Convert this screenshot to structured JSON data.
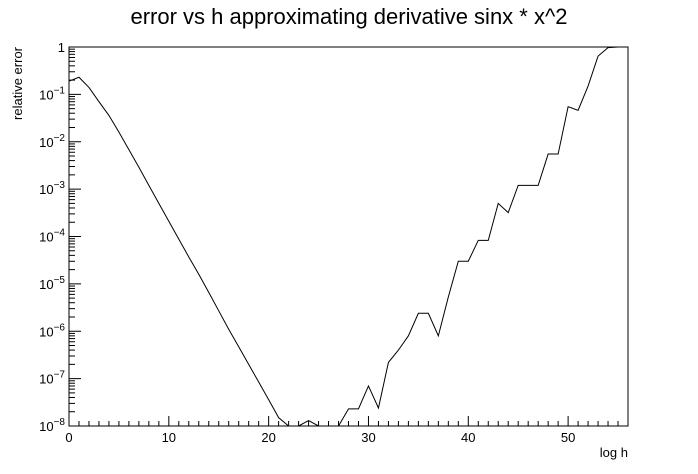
{
  "chart_data": {
    "type": "line",
    "title": "error vs h approximating derivative sinx * x^2",
    "xlabel": "log h",
    "ylabel": "relative error",
    "xlim": [
      0,
      56
    ],
    "ylim": [
      1e-08,
      1
    ],
    "yscale": "log",
    "grid": false,
    "x_ticks": [
      {
        "value": 0,
        "label": "0"
      },
      {
        "value": 10,
        "label": "10"
      },
      {
        "value": 20,
        "label": "20"
      },
      {
        "value": 30,
        "label": "30"
      },
      {
        "value": 40,
        "label": "40"
      },
      {
        "value": 50,
        "label": "50"
      }
    ],
    "y_ticks": [
      {
        "value": 1,
        "base": "1",
        "exp": ""
      },
      {
        "value": 0.1,
        "base": "10",
        "exp": "−1"
      },
      {
        "value": 0.01,
        "base": "10",
        "exp": "−2"
      },
      {
        "value": 0.001,
        "base": "10",
        "exp": "−3"
      },
      {
        "value": 0.0001,
        "base": "10",
        "exp": "−4"
      },
      {
        "value": 1e-05,
        "base": "10",
        "exp": "−5"
      },
      {
        "value": 1e-06,
        "base": "10",
        "exp": "−6"
      },
      {
        "value": 1e-07,
        "base": "10",
        "exp": "−7"
      },
      {
        "value": 1e-08,
        "base": "10",
        "exp": "−8"
      }
    ],
    "series": [
      {
        "x": [
          0,
          1,
          2,
          3,
          4,
          5,
          6,
          7,
          8,
          9,
          10,
          11,
          12,
          13,
          14,
          15,
          16,
          17,
          18,
          19,
          20,
          21,
          22,
          23,
          24,
          25,
          26,
          27,
          28,
          29,
          30,
          31,
          32,
          33,
          34,
          35,
          36,
          37,
          38,
          39,
          40,
          41,
          42,
          43,
          44,
          45,
          46,
          47,
          48,
          49,
          50,
          51,
          52,
          53,
          54,
          55,
          56
        ],
        "y": [
          0.19,
          0.23,
          0.14,
          0.07,
          0.036,
          0.016,
          0.0068,
          0.0029,
          0.0012,
          0.0005,
          0.00021,
          8.8e-05,
          3.7e-05,
          1.6e-05,
          6.6e-06,
          2.7e-06,
          1.1e-06,
          4.7e-07,
          2e-07,
          8.5e-08,
          3.6e-08,
          1.5e-08,
          6.5e-09,
          2.9e-09,
          1.3e-08,
          6e-10,
          1e-08,
          1e-08,
          2.3e-08,
          2.3e-08,
          7e-08,
          2.4e-08,
          2.2e-07,
          4e-07,
          8e-07,
          2.4e-06,
          2.4e-06,
          8e-07,
          5.3e-06,
          3e-05,
          3e-05,
          8.3e-05,
          8.3e-05,
          0.0005,
          0.00032,
          0.0012,
          0.0012,
          0.0012,
          0.0055,
          0.0055,
          0.055,
          0.046,
          0.15,
          0.64,
          0.97,
          1,
          1
        ]
      }
    ]
  }
}
